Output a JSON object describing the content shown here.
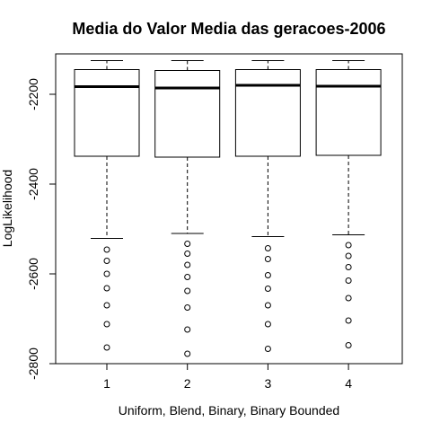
{
  "chart_data": {
    "type": "boxplot",
    "title": "Media do Valor Media das geracoes-2006",
    "xlabel": "Uniform, Blend, Binary, Binary Bounded",
    "ylabel": "LogLikelihood",
    "categories": [
      "1",
      "2",
      "3",
      "4"
    ],
    "ylim": [
      -2800,
      -2110
    ],
    "yticks": [
      -2800,
      -2600,
      -2400,
      -2200
    ],
    "ytick_labels": [
      "-2800",
      "-2600",
      "-2400",
      "-2200"
    ],
    "boxes": [
      {
        "category": "1",
        "whisker_high": -2125,
        "q3": -2145,
        "median": -2183,
        "q1": -2338,
        "whisker_low": -2521,
        "outliers": [
          -2546,
          -2571,
          -2600,
          -2632,
          -2670,
          -2712,
          -2764
        ]
      },
      {
        "category": "2",
        "whisker_high": -2125,
        "q3": -2147,
        "median": -2186,
        "q1": -2340,
        "whisker_low": -2510,
        "outliers": [
          -2533,
          -2555,
          -2580,
          -2607,
          -2638,
          -2675,
          -2724,
          -2778
        ]
      },
      {
        "category": "3",
        "whisker_high": -2125,
        "q3": -2145,
        "median": -2180,
        "q1": -2338,
        "whisker_low": -2517,
        "outliers": [
          -2543,
          -2567,
          -2603,
          -2633,
          -2670,
          -2712,
          -2767
        ]
      },
      {
        "category": "4",
        "whisker_high": -2125,
        "q3": -2145,
        "median": -2182,
        "q1": -2336,
        "whisker_low": -2513,
        "outliers": [
          -2536,
          -2560,
          -2585,
          -2615,
          -2654,
          -2704,
          -2759
        ]
      }
    ],
    "grid": false,
    "legend": "none",
    "colors": {
      "box_fill": "#ffffff",
      "stroke": "#000000"
    }
  }
}
